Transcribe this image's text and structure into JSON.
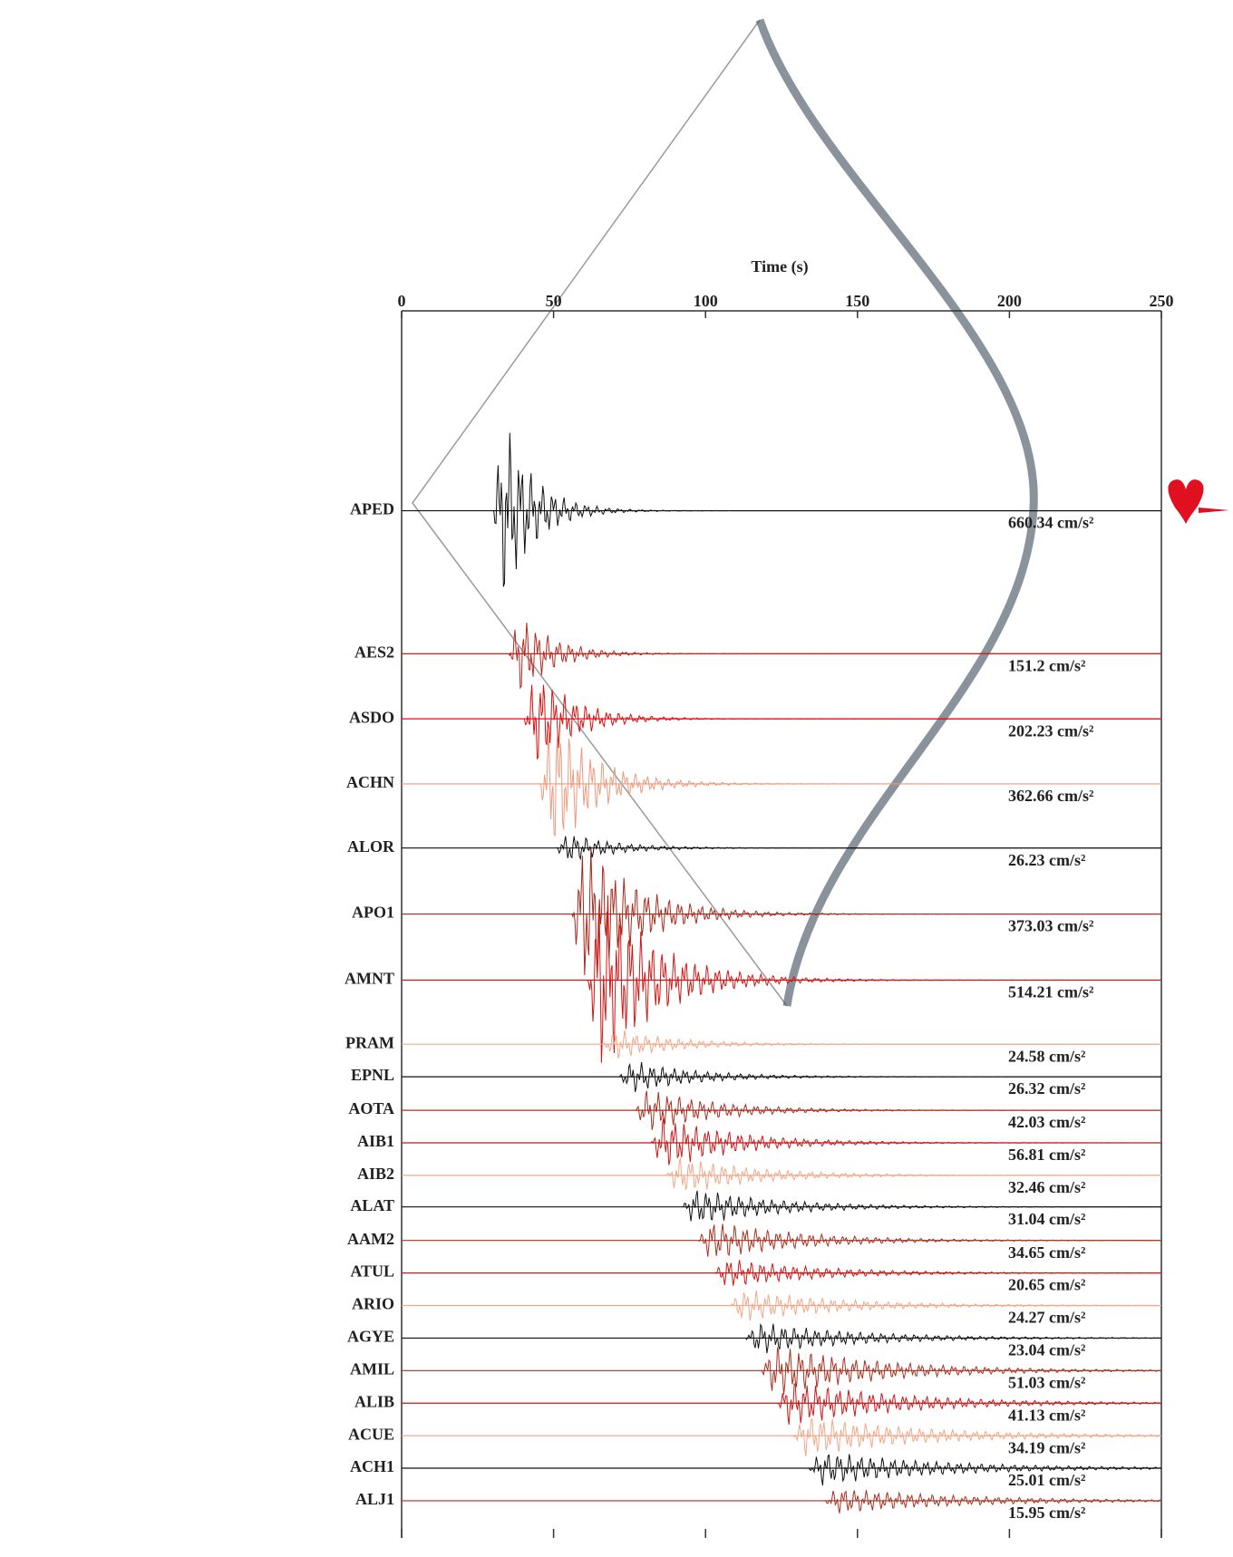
{
  "chart_data": {
    "type": "seismogram",
    "x_label": "Time (s)",
    "xlim": [
      0,
      250
    ],
    "xticks": [
      0,
      50,
      100,
      150,
      200,
      250
    ],
    "categories": [
      "APED",
      "AES2",
      "ASDO",
      "ACHN",
      "ALOR",
      "APO1",
      "AMNT",
      "PRAM",
      "EPNL",
      "AOTA",
      "AIB1",
      "AIB2",
      "ALAT",
      "AAM2",
      "ATUL",
      "ARIO",
      "AGYE",
      "AMIL",
      "ALIB",
      "ACUE",
      "ACH1",
      "ALJ1"
    ],
    "values": [
      660.34,
      151.2,
      202.23,
      362.66,
      26.23,
      373.03,
      514.21,
      24.58,
      26.32,
      42.03,
      56.81,
      32.46,
      31.04,
      34.65,
      20.65,
      24.27,
      23.04,
      51.03,
      41.13,
      34.19,
      25.01,
      15.95
    ],
    "value_labels": [
      "660.34 cm/s²",
      "151.2 cm/s²",
      "202.23 cm/s²",
      "362.66 cm/s²",
      "26.23 cm/s²",
      "373.03 cm/s²",
      "514.21 cm/s²",
      "24.58 cm/s²",
      "26.32 cm/s²",
      "42.03 cm/s²",
      "56.81 cm/s²",
      "32.46 cm/s²",
      "31.04 cm/s²",
      "34.65 cm/s²",
      "20.65 cm/s²",
      "24.27 cm/s²",
      "23.04 cm/s²",
      "51.03 cm/s²",
      "41.13 cm/s²",
      "34.19 cm/s²",
      "25.01 cm/s²",
      "15.95 cm/s²"
    ],
    "colors": [
      "#111111",
      "#b8281c",
      "#d81010",
      "#ec9a7e",
      "#111111",
      "#a82a1c",
      "#d41414",
      "#f0a888",
      "#111111",
      "#a83020",
      "#c81818",
      "#f0a888",
      "#111111",
      "#a83020",
      "#c81818",
      "#f0a888",
      "#111111",
      "#a83020",
      "#c81818",
      "#f0a888",
      "#111111",
      "#a83020"
    ]
  }
}
